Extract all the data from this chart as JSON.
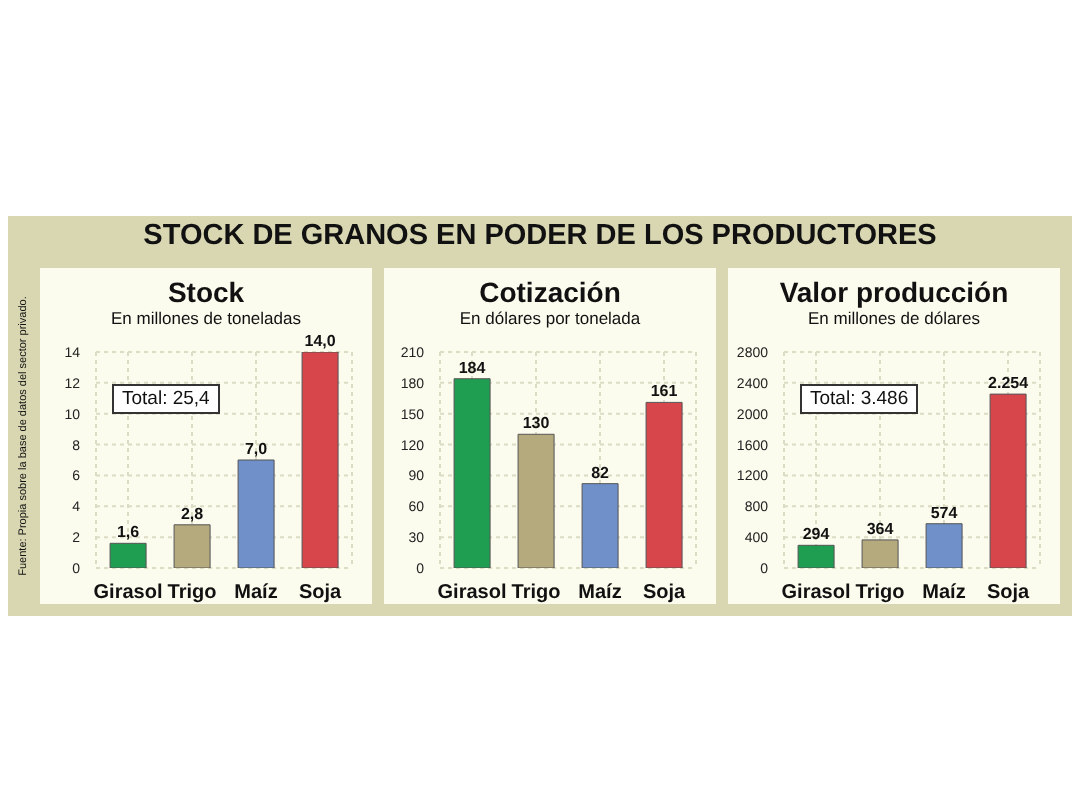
{
  "chart_data": [
    {
      "type": "bar",
      "title": "Stock",
      "subtitle": "En millones de toneladas",
      "categories": [
        "Girasol",
        "Trigo",
        "Maíz",
        "Soja"
      ],
      "values": [
        1.6,
        2.8,
        7.0,
        14.0
      ],
      "colors": [
        "#1f9e52",
        "#b5aa7e",
        "#6f90c9",
        "#d6464b"
      ],
      "value_labels": [
        "1,6",
        "2,8",
        "7,0",
        "14,0"
      ],
      "ylim": [
        0,
        14
      ],
      "yticks": [
        0,
        2,
        4,
        6,
        8,
        10,
        12,
        14
      ],
      "grid": true,
      "annotations": [
        "STOCK DE GRANOS EN PODER DE LOS PRODUCTORES",
        "Total: 25,4",
        "Fuente: Propia sobre la base de datos del sector privado."
      ]
    },
    {
      "type": "bar",
      "title": "Cotización",
      "subtitle": "En dólares por tonelada",
      "categories": [
        "Girasol",
        "Trigo",
        "Maíz",
        "Soja"
      ],
      "values": [
        184,
        130,
        82,
        161
      ],
      "colors": [
        "#1f9e52",
        "#b5aa7e",
        "#6f90c9",
        "#d6464b"
      ],
      "data_labels": true,
      "ylim": [
        0,
        210
      ],
      "yticks": [
        0,
        30,
        60,
        90,
        120,
        150,
        180,
        210
      ],
      "grid": true
    },
    {
      "type": "bar",
      "title": "Valor producción",
      "subtitle": "En millones de dólares",
      "categories": [
        "Girasol",
        "Trigo",
        "Maíz",
        "Soja"
      ],
      "values": [
        294,
        364,
        574,
        2254
      ],
      "colors": [
        "#1f9e52",
        "#b5aa7e",
        "#6f90c9",
        "#d6464b"
      ],
      "value_labels": [
        "294",
        "364",
        "574",
        "2.254"
      ],
      "ylim": [
        0,
        2800
      ],
      "yticks": [
        0,
        400,
        800,
        1200,
        1600,
        2000,
        2400,
        2800
      ],
      "grid": true,
      "annotations": [
        "Total: 3.486"
      ]
    }
  ]
}
